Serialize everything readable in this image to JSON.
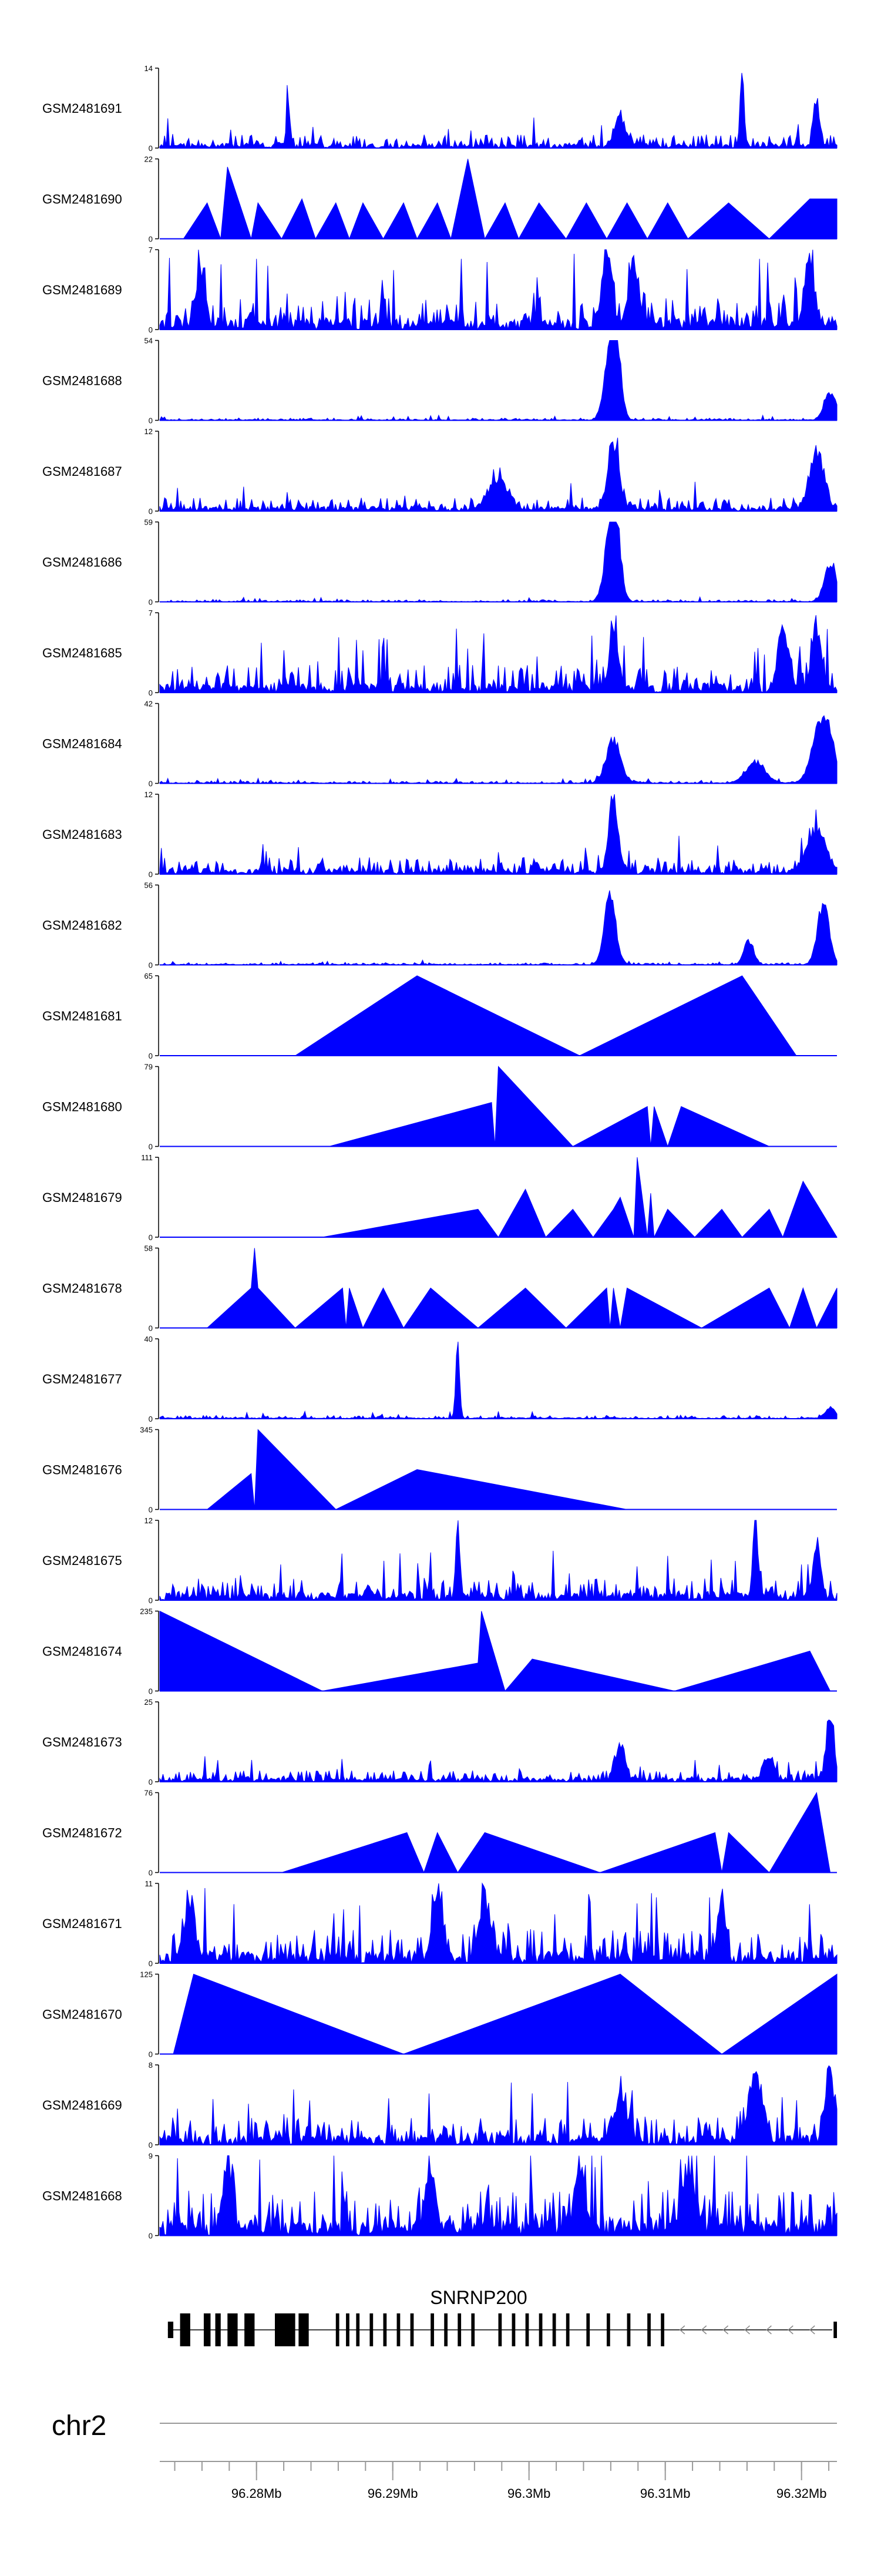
{
  "chart_data": {
    "type": "area",
    "description_text": "",
    "tracks": [
      {
        "name": "GSM2481691",
        "ymax": 14,
        "shape": "noisy",
        "seed": 11,
        "base": 0.12,
        "peaks": [
          [
            0.86,
            1.0,
            0.004
          ],
          [
            0.19,
            0.55,
            0.004
          ],
          [
            0.97,
            0.7,
            0.006
          ],
          [
            0.68,
            0.45,
            0.01
          ]
        ]
      },
      {
        "name": "GSM2481690",
        "ymax": 22,
        "shape": "tri",
        "pts": [
          [
            0.035,
            0
          ],
          [
            0.07,
            0.45
          ],
          [
            0.09,
            0
          ],
          [
            0.1,
            0.9
          ],
          [
            0.135,
            0
          ],
          [
            0.145,
            0.45
          ],
          [
            0.18,
            0
          ],
          [
            0.21,
            0.5
          ],
          [
            0.23,
            0
          ],
          [
            0.26,
            0.45
          ],
          [
            0.28,
            0
          ],
          [
            0.3,
            0.45
          ],
          [
            0.33,
            0
          ],
          [
            0.36,
            0.45
          ],
          [
            0.38,
            0
          ],
          [
            0.41,
            0.45
          ],
          [
            0.43,
            0
          ],
          [
            0.455,
            1.0
          ],
          [
            0.48,
            0
          ],
          [
            0.51,
            0.45
          ],
          [
            0.53,
            0
          ],
          [
            0.56,
            0.45
          ],
          [
            0.6,
            0
          ],
          [
            0.63,
            0.45
          ],
          [
            0.66,
            0
          ],
          [
            0.69,
            0.45
          ],
          [
            0.72,
            0
          ],
          [
            0.75,
            0.45
          ],
          [
            0.78,
            0
          ],
          [
            0.84,
            0.45
          ],
          [
            0.9,
            0
          ],
          [
            0.96,
            0.5
          ],
          [
            1.0,
            0.5
          ],
          [
            1.0,
            0
          ]
        ]
      },
      {
        "name": "GSM2481689",
        "ymax": 7,
        "shape": "noisy",
        "seed": 23,
        "base": 0.3,
        "peaks": [
          [
            0.66,
            1.0,
            0.01
          ],
          [
            0.7,
            0.9,
            0.01
          ],
          [
            0.06,
            0.7,
            0.01
          ],
          [
            0.96,
            0.9,
            0.01
          ]
        ]
      },
      {
        "name": "GSM2481688",
        "ymax": 54,
        "shape": "noisy",
        "seed": 31,
        "base": 0.02,
        "peaks": [
          [
            0.665,
            0.95,
            0.012
          ],
          [
            0.675,
            0.8,
            0.01
          ],
          [
            0.99,
            0.4,
            0.012
          ]
        ]
      },
      {
        "name": "GSM2481687",
        "ymax": 12,
        "shape": "noisy",
        "seed": 41,
        "base": 0.12,
        "peaks": [
          [
            0.67,
            0.85,
            0.012
          ],
          [
            0.97,
            0.8,
            0.015
          ],
          [
            0.5,
            0.4,
            0.02
          ]
        ]
      },
      {
        "name": "GSM2481686",
        "ymax": 59,
        "shape": "noisy",
        "seed": 53,
        "base": 0.02,
        "peaks": [
          [
            0.665,
            0.95,
            0.012
          ],
          [
            0.675,
            0.75,
            0.01
          ],
          [
            0.99,
            0.55,
            0.012
          ]
        ]
      },
      {
        "name": "GSM2481685",
        "ymax": 7,
        "shape": "noisy",
        "seed": 61,
        "base": 0.25,
        "peaks": [
          [
            0.67,
            1.0,
            0.008
          ],
          [
            0.92,
            0.9,
            0.01
          ],
          [
            0.97,
            0.85,
            0.01
          ]
        ]
      },
      {
        "name": "GSM2481684",
        "ymax": 42,
        "shape": "noisy",
        "seed": 71,
        "base": 0.02,
        "peaks": [
          [
            0.67,
            0.6,
            0.015
          ],
          [
            0.98,
            0.95,
            0.02
          ],
          [
            0.88,
            0.3,
            0.02
          ]
        ]
      },
      {
        "name": "GSM2481683",
        "ymax": 12,
        "shape": "noisy",
        "seed": 83,
        "base": 0.15,
        "peaks": [
          [
            0.67,
            1.0,
            0.01
          ],
          [
            0.97,
            0.55,
            0.02
          ]
        ]
      },
      {
        "name": "GSM2481682",
        "ymax": 56,
        "shape": "noisy",
        "seed": 97,
        "base": 0.02,
        "peaks": [
          [
            0.665,
            0.95,
            0.012
          ],
          [
            0.98,
            0.9,
            0.012
          ],
          [
            0.87,
            0.35,
            0.01
          ]
        ]
      },
      {
        "name": "GSM2481681",
        "ymax": 65,
        "shape": "tri",
        "pts": [
          [
            0.2,
            0
          ],
          [
            0.38,
            1.0
          ],
          [
            0.62,
            0
          ],
          [
            0.86,
            1.0
          ],
          [
            0.94,
            0
          ]
        ]
      },
      {
        "name": "GSM2481680",
        "ymax": 79,
        "shape": "tri",
        "pts": [
          [
            0.25,
            0
          ],
          [
            0.49,
            0.55
          ],
          [
            0.495,
            0.0
          ],
          [
            0.5,
            1.0
          ],
          [
            0.61,
            0
          ],
          [
            0.72,
            0.5
          ],
          [
            0.725,
            0.0
          ],
          [
            0.73,
            0.5
          ],
          [
            0.75,
            0
          ],
          [
            0.77,
            0.5
          ],
          [
            0.9,
            0
          ]
        ]
      },
      {
        "name": "GSM2481679",
        "ymax": 111,
        "shape": "tri",
        "pts": [
          [
            0.24,
            0
          ],
          [
            0.47,
            0.35
          ],
          [
            0.5,
            0
          ],
          [
            0.54,
            0.6
          ],
          [
            0.57,
            0
          ],
          [
            0.61,
            0.35
          ],
          [
            0.64,
            0
          ],
          [
            0.67,
            0.35
          ],
          [
            0.68,
            0.5
          ],
          [
            0.7,
            0
          ],
          [
            0.705,
            1.0
          ],
          [
            0.72,
            0
          ],
          [
            0.725,
            0.55
          ],
          [
            0.73,
            0
          ],
          [
            0.75,
            0.35
          ],
          [
            0.79,
            0
          ],
          [
            0.83,
            0.35
          ],
          [
            0.86,
            0
          ],
          [
            0.9,
            0.35
          ],
          [
            0.92,
            0
          ],
          [
            0.95,
            0.7
          ],
          [
            1.0,
            0
          ]
        ]
      },
      {
        "name": "GSM2481678",
        "ymax": 58,
        "shape": "tri",
        "pts": [
          [
            0.07,
            0
          ],
          [
            0.135,
            0.5
          ],
          [
            0.14,
            1.0
          ],
          [
            0.145,
            0.5
          ],
          [
            0.2,
            0
          ],
          [
            0.27,
            0.5
          ],
          [
            0.275,
            0
          ],
          [
            0.28,
            0.5
          ],
          [
            0.3,
            0
          ],
          [
            0.33,
            0.5
          ],
          [
            0.36,
            0
          ],
          [
            0.4,
            0.5
          ],
          [
            0.47,
            0
          ],
          [
            0.54,
            0.5
          ],
          [
            0.6,
            0
          ],
          [
            0.66,
            0.5
          ],
          [
            0.665,
            0.0
          ],
          [
            0.67,
            0.5
          ],
          [
            0.68,
            0
          ],
          [
            0.69,
            0.5
          ],
          [
            0.8,
            0
          ],
          [
            0.9,
            0.5
          ],
          [
            0.93,
            0
          ],
          [
            0.95,
            0.5
          ],
          [
            0.97,
            0
          ],
          [
            1.0,
            0.5
          ],
          [
            1.0,
            0
          ]
        ]
      },
      {
        "name": "GSM2481677",
        "ymax": 40,
        "shape": "noisy",
        "seed": 107,
        "base": 0.03,
        "peaks": [
          [
            0.44,
            1.0,
            0.004
          ],
          [
            0.99,
            0.15,
            0.01
          ]
        ]
      },
      {
        "name": "GSM2481676",
        "ymax": 345,
        "shape": "tri",
        "pts": [
          [
            0.07,
            0
          ],
          [
            0.135,
            0.45
          ],
          [
            0.14,
            0.0
          ],
          [
            0.145,
            1.0
          ],
          [
            0.26,
            0
          ],
          [
            0.38,
            0.5
          ],
          [
            0.69,
            0
          ]
        ]
      },
      {
        "name": "GSM2481675",
        "ymax": 12,
        "shape": "noisy",
        "seed": 113,
        "base": 0.2,
        "peaks": [
          [
            0.44,
            1.0,
            0.004
          ],
          [
            0.88,
            0.95,
            0.006
          ],
          [
            0.97,
            0.7,
            0.008
          ]
        ]
      },
      {
        "name": "GSM2481674",
        "ymax": 235,
        "shape": "tri",
        "pts": [
          [
            0.0,
            0
          ],
          [
            0.0,
            1.0
          ],
          [
            0.24,
            0
          ],
          [
            0.47,
            0.35
          ],
          [
            0.475,
            1.0
          ],
          [
            0.51,
            0
          ],
          [
            0.55,
            0.4
          ],
          [
            0.76,
            0
          ],
          [
            0.96,
            0.5
          ],
          [
            0.99,
            0
          ]
        ]
      },
      {
        "name": "GSM2481673",
        "ymax": 25,
        "shape": "noisy",
        "seed": 127,
        "base": 0.1,
        "peaks": [
          [
            0.99,
            0.95,
            0.008
          ],
          [
            0.68,
            0.5,
            0.01
          ],
          [
            0.9,
            0.3,
            0.01
          ]
        ]
      },
      {
        "name": "GSM2481672",
        "ymax": 76,
        "shape": "tri",
        "pts": [
          [
            0.18,
            0
          ],
          [
            0.365,
            0.5
          ],
          [
            0.39,
            0
          ],
          [
            0.41,
            0.5
          ],
          [
            0.44,
            0
          ],
          [
            0.48,
            0.5
          ],
          [
            0.65,
            0
          ],
          [
            0.82,
            0.5
          ],
          [
            0.83,
            0.0
          ],
          [
            0.84,
            0.5
          ],
          [
            0.9,
            0
          ],
          [
            0.97,
            1.0
          ],
          [
            0.99,
            0
          ]
        ]
      },
      {
        "name": "GSM2481671",
        "ymax": 11,
        "shape": "noisy",
        "seed": 137,
        "base": 0.3,
        "peaks": [
          [
            0.41,
            0.95,
            0.01
          ],
          [
            0.48,
            0.9,
            0.01
          ],
          [
            0.83,
            0.95,
            0.006
          ],
          [
            0.045,
            0.8,
            0.01
          ]
        ]
      },
      {
        "name": "GSM2481670",
        "ymax": 125,
        "shape": "tri",
        "pts": [
          [
            0.02,
            0
          ],
          [
            0.05,
            1.0
          ],
          [
            0.36,
            0
          ],
          [
            0.68,
            1.0
          ],
          [
            0.83,
            0
          ],
          [
            1.0,
            1.0
          ],
          [
            1.0,
            0
          ]
        ]
      },
      {
        "name": "GSM2481669",
        "ymax": 8,
        "shape": "noisy",
        "seed": 149,
        "base": 0.25,
        "peaks": [
          [
            0.88,
            0.85,
            0.015
          ],
          [
            0.99,
            0.95,
            0.01
          ],
          [
            0.68,
            0.6,
            0.015
          ]
        ]
      },
      {
        "name": "GSM2481668",
        "ymax": 9,
        "shape": "noisy",
        "seed": 157,
        "base": 0.4,
        "peaks": [
          [
            0.1,
            0.9,
            0.01
          ],
          [
            0.4,
            0.8,
            0.01
          ],
          [
            0.62,
            0.85,
            0.01
          ],
          [
            0.78,
            0.8,
            0.01
          ]
        ]
      }
    ],
    "gene": {
      "label": "SNRNP200",
      "direction": "minus",
      "blocks": [
        [
          0.03,
          0.045
        ],
        [
          0.065,
          0.075
        ],
        [
          0.082,
          0.09
        ],
        [
          0.1,
          0.115
        ],
        [
          0.125,
          0.14
        ],
        [
          0.17,
          0.2
        ],
        [
          0.205,
          0.22
        ],
        [
          0.26,
          0.265
        ],
        [
          0.275,
          0.28
        ],
        [
          0.29,
          0.295
        ],
        [
          0.31,
          0.315
        ],
        [
          0.33,
          0.335
        ],
        [
          0.35,
          0.355
        ],
        [
          0.37,
          0.375
        ],
        [
          0.4,
          0.405
        ],
        [
          0.42,
          0.425
        ],
        [
          0.44,
          0.445
        ],
        [
          0.46,
          0.465
        ],
        [
          0.5,
          0.505
        ],
        [
          0.52,
          0.525
        ],
        [
          0.54,
          0.545
        ],
        [
          0.56,
          0.565
        ],
        [
          0.58,
          0.585
        ],
        [
          0.6,
          0.605
        ],
        [
          0.63,
          0.635
        ],
        [
          0.66,
          0.665
        ],
        [
          0.69,
          0.695
        ],
        [
          0.72,
          0.725
        ],
        [
          0.74,
          0.745
        ]
      ],
      "thin_blocks": [
        [
          0.012,
          0.02
        ],
        [
          0.995,
          1.0
        ]
      ]
    },
    "chromosome": "chr2",
    "axis": {
      "ticks_labelled": [
        "96.28Mb",
        "96.29Mb",
        "96.3Mb",
        "96.31Mb",
        "96.32Mb"
      ],
      "tick_positions_mb": [
        96.28,
        96.29,
        96.3,
        96.31,
        96.32
      ],
      "range_mb": [
        96.2729,
        96.3226
      ],
      "minor_step_mb": 0.002
    }
  }
}
